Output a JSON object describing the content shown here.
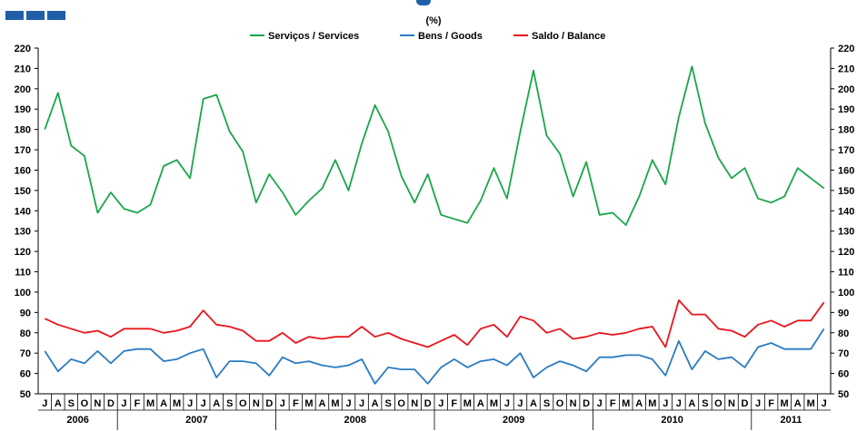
{
  "title": "(%)",
  "chart_data": {
    "type": "line",
    "title": "(%)",
    "ylim": [
      50,
      220
    ],
    "yticks": [
      50,
      60,
      70,
      80,
      90,
      100,
      110,
      120,
      130,
      140,
      150,
      160,
      170,
      180,
      190,
      200,
      210,
      220
    ],
    "legend_position": "top-center",
    "grid": false,
    "months": [
      "J",
      "A",
      "S",
      "O",
      "N",
      "D",
      "J",
      "F",
      "M",
      "A",
      "M",
      "J",
      "J",
      "A",
      "S",
      "O",
      "N",
      "D",
      "J",
      "F",
      "M",
      "A",
      "M",
      "J",
      "J",
      "A",
      "S",
      "O",
      "N",
      "D",
      "J",
      "F",
      "M",
      "A",
      "M",
      "J",
      "J",
      "A",
      "S",
      "O",
      "N",
      "D",
      "J",
      "F",
      "M",
      "A",
      "M",
      "J",
      "J",
      "A",
      "S",
      "O",
      "N",
      "D",
      "J",
      "F",
      "M",
      "A",
      "M",
      "J"
    ],
    "years": [
      {
        "label": "2006",
        "start": 0,
        "count": 6
      },
      {
        "label": "2007",
        "start": 6,
        "count": 12
      },
      {
        "label": "2008",
        "start": 18,
        "count": 12
      },
      {
        "label": "2009",
        "start": 30,
        "count": 12
      },
      {
        "label": "2010",
        "start": 42,
        "count": 12
      },
      {
        "label": "2011",
        "start": 54,
        "count": 6
      }
    ],
    "series": [
      {
        "name": "Serviços / Services",
        "color": "#1aa64a",
        "values": [
          180,
          198,
          172,
          167,
          139,
          149,
          141,
          139,
          143,
          162,
          165,
          156,
          195,
          197,
          179,
          169,
          144,
          158,
          149,
          138,
          145,
          151,
          165,
          150,
          173,
          192,
          179,
          157,
          144,
          158,
          138,
          136,
          134,
          145,
          161,
          146,
          179,
          209,
          177,
          168,
          147,
          164,
          138,
          139,
          133,
          147,
          165,
          153,
          186,
          211,
          183,
          166,
          156,
          161,
          146,
          144,
          147,
          161,
          156,
          151
        ]
      },
      {
        "name": "Bens / Goods",
        "color": "#2a7bc2",
        "values": [
          71,
          61,
          67,
          65,
          71,
          65,
          71,
          72,
          72,
          66,
          67,
          70,
          72,
          58,
          66,
          66,
          65,
          59,
          68,
          65,
          66,
          64,
          63,
          64,
          67,
          55,
          63,
          62,
          62,
          55,
          63,
          67,
          63,
          66,
          67,
          64,
          70,
          58,
          63,
          66,
          64,
          61,
          68,
          68,
          69,
          69,
          67,
          59,
          76,
          62,
          71,
          67,
          68,
          63,
          73,
          75,
          72,
          72,
          72,
          82
        ]
      },
      {
        "name": "Saldo / Balance",
        "color": "#e8161c",
        "values": [
          87,
          84,
          82,
          80,
          81,
          78,
          82,
          82,
          82,
          80,
          81,
          83,
          91,
          84,
          83,
          81,
          76,
          76,
          80,
          75,
          78,
          77,
          78,
          78,
          83,
          78,
          80,
          77,
          75,
          73,
          76,
          79,
          74,
          82,
          84,
          78,
          88,
          86,
          80,
          82,
          77,
          78,
          80,
          79,
          80,
          82,
          83,
          73,
          96,
          89,
          89,
          82,
          81,
          78,
          84,
          86,
          83,
          86,
          86,
          95
        ]
      }
    ]
  }
}
